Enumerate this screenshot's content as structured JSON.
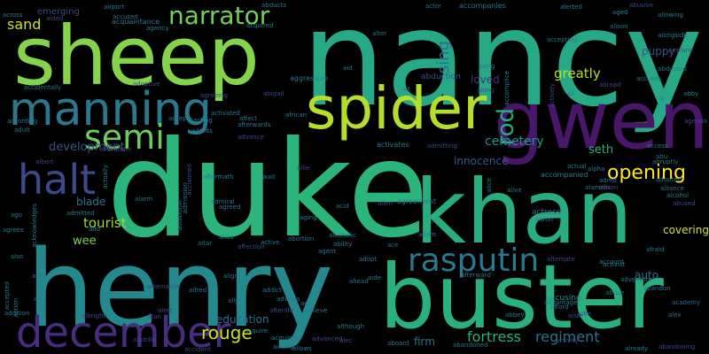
{
  "words": [
    {
      "id": "nancy",
      "text": "nancy",
      "color": "#27a987"
    },
    {
      "id": "duke",
      "text": "duke",
      "color": "#2cb47d"
    },
    {
      "id": "henry",
      "text": "henry",
      "color": "#23898e"
    },
    {
      "id": "sheep",
      "text": "sheep",
      "color": "#84d44b"
    },
    {
      "id": "khan",
      "text": "khan",
      "color": "#27ad81"
    },
    {
      "id": "buster",
      "text": "buster",
      "color": "#2ab07f"
    },
    {
      "id": "gwen",
      "text": "gwen",
      "color": "#481769"
    },
    {
      "id": "spider",
      "text": "spider",
      "color": "#b5de2b"
    },
    {
      "id": "manning",
      "text": "manning",
      "color": "#2a788e"
    },
    {
      "id": "december",
      "text": "december",
      "color": "#472d7b"
    },
    {
      "id": "rasputin",
      "text": "rasputin",
      "color": "#2a788e"
    },
    {
      "id": "halt",
      "text": "halt",
      "color": "#3e4989"
    },
    {
      "id": "semi",
      "text": "semi",
      "color": "#6ccd5a"
    },
    {
      "id": "narrator",
      "text": "narrator",
      "color": "#73d056"
    },
    {
      "id": "opening",
      "text": "opening",
      "color": "#fde725"
    },
    {
      "id": "rouge",
      "text": "rouge",
      "color": "#d0e11c"
    },
    {
      "id": "rod",
      "text": "rod",
      "color": "#27ad81"
    },
    {
      "id": "fortress",
      "text": "fortress",
      "color": "#2ab07f"
    },
    {
      "id": "regiment",
      "text": "regiment",
      "color": "#2c728e"
    },
    {
      "id": "sand",
      "text": "sand",
      "color": "#cde11d"
    },
    {
      "id": "greatly",
      "text": "greatly",
      "color": "#b5de2b"
    },
    {
      "id": "sing",
      "text": "sing",
      "color": "#31688e"
    },
    {
      "id": "development",
      "text": "development",
      "color": "#3b528b"
    },
    {
      "id": "cemetery",
      "text": "cemetery",
      "color": "#1f958b"
    },
    {
      "id": "innocence",
      "text": "innocence",
      "color": "#39568c"
    },
    {
      "id": "seth",
      "text": "seth",
      "color": "#2ab07f"
    },
    {
      "id": "tourist",
      "text": "tourist",
      "color": "#9fda3a"
    },
    {
      "id": "blade",
      "text": "blade",
      "color": "#2a778e"
    },
    {
      "id": "wee",
      "text": "wee",
      "color": "#7fd34e"
    },
    {
      "id": "education",
      "text": "education",
      "color": "#2d708e"
    },
    {
      "id": "firm",
      "text": "firm",
      "color": "#2c728e"
    },
    {
      "id": "covering",
      "text": "covering",
      "color": "#d8e219"
    },
    {
      "id": "auto",
      "text": "auto",
      "color": "#2a788e"
    },
    {
      "id": "puppy",
      "text": "puppy",
      "color": "#3b528b"
    },
    {
      "id": "loved",
      "text": "loved",
      "color": "#46327e"
    },
    {
      "id": "emerging",
      "text": "emerging",
      "color": "#3e4989"
    },
    {
      "id": "actress",
      "text": "actress",
      "color": "#31688e"
    },
    {
      "id": "accusing",
      "text": "accusing",
      "color": "#21918c"
    },
    {
      "id": "abduction",
      "text": "abduction",
      "color": "#3b528b"
    },
    {
      "id": "aggressive",
      "text": "aggressive",
      "color": "#2a788e"
    },
    {
      "id": "adoptive",
      "text": "adoptive",
      "color": "#3e4989"
    },
    {
      "id": "admitting",
      "text": "admitting",
      "color": "#3e4989"
    },
    {
      "id": "accompanied",
      "text": "accompanied",
      "color": "#2a788e"
    },
    {
      "id": "activates",
      "text": "activates",
      "color": "#2a788e"
    },
    {
      "id": "agreement",
      "text": "agreement",
      "color": "#2a788e"
    },
    {
      "id": "acquaintance",
      "text": "acquaintance",
      "color": "#2a788e"
    },
    {
      "id": "accepting",
      "text": "accepting",
      "color": "#2a788e"
    },
    {
      "id": "accompanies",
      "text": "accompanies",
      "color": "#2a788e"
    },
    {
      "id": "abandoning",
      "text": "abandoning",
      "color": "#3e4989"
    },
    {
      "id": "academy",
      "text": "academy",
      "color": "#31688e"
    },
    {
      "id": "abandon",
      "text": "abandon",
      "color": "#2a788e"
    },
    {
      "id": "adventure",
      "text": "adventure",
      "color": "#2a788e"
    },
    {
      "id": "airport",
      "text": "airport",
      "color": "#2a788e"
    },
    {
      "id": "abducts",
      "text": "abducts",
      "color": "#2a788e"
    },
    {
      "id": "actor",
      "text": "actor",
      "color": "#2a788e"
    },
    {
      "id": "alerted",
      "text": "alerted",
      "color": "#2a788e"
    },
    {
      "id": "abusive",
      "text": "abusive",
      "color": "#3e4989"
    },
    {
      "id": "across",
      "text": "across",
      "color": "#2a788e"
    },
    {
      "id": "accused",
      "text": "accused",
      "color": "#2a788e"
    },
    {
      "id": "agency",
      "text": "agency",
      "color": "#2a788e"
    },
    {
      "id": "acquired",
      "text": "acquired",
      "color": "#2a788e"
    },
    {
      "id": "aided",
      "text": "aided",
      "color": "#3e4989"
    },
    {
      "id": "alter",
      "text": "alter",
      "color": "#2a788e"
    },
    {
      "id": "aid",
      "text": "aid",
      "color": "#2a788e"
    },
    {
      "id": "aang",
      "text": "aang",
      "color": "#2a788e"
    },
    {
      "id": "ad",
      "text": "ad",
      "color": "#2a788e"
    },
    {
      "id": "along",
      "text": "along",
      "color": "#3e4989"
    },
    {
      "id": "accidentally",
      "text": "accidentally",
      "color": "#2a788e"
    },
    {
      "id": "abigail",
      "text": "abigail",
      "color": "#3e4989"
    },
    {
      "id": "agreeing",
      "text": "agreeing",
      "color": "#3e4989"
    },
    {
      "id": "accepts",
      "text": "accepts",
      "color": "#2a788e"
    },
    {
      "id": "acting",
      "text": "acting",
      "color": "#2a788e"
    },
    {
      "id": "activated",
      "text": "activated",
      "color": "#2a788e"
    },
    {
      "id": "affect",
      "text": "affect",
      "color": "#2a788e"
    },
    {
      "id": "afterwards",
      "text": "afterwards",
      "color": "#2a788e"
    },
    {
      "id": "admits",
      "text": "admits",
      "color": "#2a788e"
    },
    {
      "id": "advance",
      "text": "advance",
      "color": "#3e4989"
    },
    {
      "id": "african",
      "text": "african",
      "color": "#2a788e"
    },
    {
      "id": "according",
      "text": "according",
      "color": "#2a788e"
    },
    {
      "id": "adult",
      "text": "adult",
      "color": "#2a788e"
    },
    {
      "id": "alien",
      "text": "alien",
      "color": "#3e4989"
    },
    {
      "id": "abroad",
      "text": "abroad",
      "color": "#3e4989"
    },
    {
      "id": "accuses",
      "text": "accuses",
      "color": "#2a788e"
    },
    {
      "id": "abby",
      "text": "abby",
      "color": "#2a788e"
    },
    {
      "id": "access",
      "text": "access",
      "color": "#2a788e"
    },
    {
      "id": "abu",
      "text": "abu",
      "color": "#2a788e"
    },
    {
      "id": "abruptly",
      "text": "abruptly",
      "color": "#2a788e"
    },
    {
      "id": "adopted",
      "text": "adopted",
      "color": "#2a788e"
    },
    {
      "id": "alliance",
      "text": "alliance",
      "color": "#2a788e"
    },
    {
      "id": "alcohol",
      "text": "alcohol",
      "color": "#2a788e"
    },
    {
      "id": "abused",
      "text": "abused",
      "color": "#3e4989"
    },
    {
      "id": "actual",
      "text": "actual",
      "color": "#2a788e"
    },
    {
      "id": "alpha",
      "text": "alpha",
      "color": "#2a788e"
    },
    {
      "id": "admit",
      "text": "admit",
      "color": "#2a788e"
    },
    {
      "id": "aaron",
      "text": "aaron",
      "color": "#2a788e"
    },
    {
      "id": "afraid",
      "text": "afraid",
      "color": "#2a788e"
    },
    {
      "id": "activist",
      "text": "activist",
      "color": "#2a788e"
    },
    {
      "id": "account",
      "text": "account",
      "color": "#2a788e"
    },
    {
      "id": "abuse",
      "text": "abuse",
      "color": "#2a788e"
    },
    {
      "id": "advantage",
      "text": "advantage",
      "color": "#2a788e"
    },
    {
      "id": "afford",
      "text": "afford",
      "color": "#2a788e"
    },
    {
      "id": "abbey",
      "text": "abbey",
      "color": "#2a788e"
    },
    {
      "id": "aisle",
      "text": "aisle",
      "color": "#3e4989"
    },
    {
      "id": "alex",
      "text": "alex",
      "color": "#2a788e"
    },
    {
      "id": "activity",
      "text": "activity",
      "color": "#3e4989"
    },
    {
      "id": "already",
      "text": "already",
      "color": "#2a788e"
    },
    {
      "id": "abandoned",
      "text": "abandoned",
      "color": "#2a788e"
    },
    {
      "id": "aboard",
      "text": "aboard",
      "color": "#2a788e"
    },
    {
      "id": "afterward",
      "text": "afterward",
      "color": "#2a788e"
    },
    {
      "id": "ace",
      "text": "ace",
      "color": "#2a788e"
    },
    {
      "id": "adopt",
      "text": "adopt",
      "color": "#2a788e"
    },
    {
      "id": "adam",
      "text": "adam",
      "color": "#2a788e"
    },
    {
      "id": "ahead",
      "text": "ahead",
      "color": "#2a788e"
    },
    {
      "id": "aide",
      "text": "aide",
      "color": "#2a788e"
    },
    {
      "id": "although",
      "text": "although",
      "color": "#2a788e"
    },
    {
      "id": "act",
      "text": "act",
      "color": "#2a788e"
    },
    {
      "id": "achieve",
      "text": "achieve",
      "color": "#2a788e"
    },
    {
      "id": "afterlife",
      "text": "afterlife",
      "color": "#3e4989"
    },
    {
      "id": "advised",
      "text": "advised",
      "color": "#2a788e"
    },
    {
      "id": "acquires",
      "text": "acquires",
      "color": "#2a788e"
    },
    {
      "id": "adding",
      "text": "adding",
      "color": "#2a788e"
    },
    {
      "id": "allows",
      "text": "allows",
      "color": "#2a788e"
    },
    {
      "id": "acquire",
      "text": "acquire",
      "color": "#2a788e"
    },
    {
      "id": "advanced",
      "text": "advanced",
      "color": "#3e4989"
    },
    {
      "id": "alec",
      "text": "alec",
      "color": "#3e4989"
    },
    {
      "id": "alan",
      "text": "alan",
      "color": "#3e4989"
    },
    {
      "id": "albright",
      "text": "albright",
      "color": "#3e4989"
    },
    {
      "id": "alert",
      "text": "alert",
      "color": "#3e4989"
    },
    {
      "id": "accident",
      "text": "accident",
      "color": "#3e4989"
    },
    {
      "id": "alfred",
      "text": "alfred",
      "color": "#2a788e"
    },
    {
      "id": "ally",
      "text": "ally",
      "color": "#2a788e"
    },
    {
      "id": "altar",
      "text": "altar",
      "color": "#2a788e"
    },
    {
      "id": "alias",
      "text": "alias",
      "color": "#2a788e"
    },
    {
      "id": "align",
      "text": "align",
      "color": "#2a788e"
    },
    {
      "id": "affection",
      "text": "affection",
      "color": "#3e4989"
    },
    {
      "id": "active",
      "text": "active",
      "color": "#2a788e"
    },
    {
      "id": "abortion",
      "text": "abortion",
      "color": "#2a788e"
    },
    {
      "id": "alcoholic",
      "text": "alcoholic",
      "color": "#2a788e"
    },
    {
      "id": "ability",
      "text": "ability",
      "color": "#2a788e"
    },
    {
      "id": "agent",
      "text": "agent",
      "color": "#2a788e"
    },
    {
      "id": "addict",
      "text": "addict",
      "color": "#2a788e"
    },
    {
      "id": "advises",
      "text": "advises",
      "color": "#2a788e"
    },
    {
      "id": "aging",
      "text": "aging",
      "color": "#2a788e"
    },
    {
      "id": "acid",
      "text": "acid",
      "color": "#2a788e"
    },
    {
      "id": "agreed",
      "text": "agreed",
      "color": "#2a788e"
    },
    {
      "id": "admiral",
      "text": "admiral",
      "color": "#2a788e"
    },
    {
      "id": "aftermath",
      "text": "aftermath",
      "color": "#2a788e"
    },
    {
      "id": "wait",
      "text": "wait",
      "color": "#2a788e"
    },
    {
      "id": "allie",
      "text": "allie",
      "color": "#3e4989"
    },
    {
      "id": "additional",
      "text": "additional",
      "color": "#2a788e"
    },
    {
      "id": "admission",
      "text": "admission",
      "color": "#2a788e"
    },
    {
      "id": "admitted",
      "text": "admitted",
      "color": "#2a788e"
    },
    {
      "id": "add",
      "text": "add",
      "color": "#2a788e"
    },
    {
      "id": "alarm",
      "text": "alarm",
      "color": "#2a788e"
    },
    {
      "id": "alexander",
      "text": "alexander",
      "color": "#3e4989"
    },
    {
      "id": "albert",
      "text": "albert",
      "color": "#3e4989"
    },
    {
      "id": "ago",
      "text": "ago",
      "color": "#2a788e"
    },
    {
      "id": "agrees",
      "text": "agrees",
      "color": "#2a788e"
    },
    {
      "id": "also",
      "text": "also",
      "color": "#2a788e"
    },
    {
      "id": "alley",
      "text": "alley",
      "color": "#2a788e"
    },
    {
      "id": "ah",
      "text": "ah",
      "color": "#2a788e"
    },
    {
      "id": "addition",
      "text": "addition",
      "color": "#2a788e"
    },
    {
      "id": "accepted",
      "text": "accepted",
      "color": "#2a788e"
    },
    {
      "id": "action",
      "text": "action",
      "color": "#2a788e"
    },
    {
      "id": "acknowledges",
      "text": "acknowledges",
      "color": "#2a788e"
    },
    {
      "id": "actually",
      "text": "actually",
      "color": "#2a788e"
    },
    {
      "id": "acclaimed",
      "text": "acclaimed",
      "color": "#3e4989"
    },
    {
      "id": "ai",
      "text": "ai",
      "color": "#2a788e"
    },
    {
      "id": "aged",
      "text": "aged",
      "color": "#2a788e"
    },
    {
      "id": "allowing",
      "text": "allowing",
      "color": "#2a788e"
    },
    {
      "id": "alison",
      "text": "alison",
      "color": "#2a788e"
    },
    {
      "id": "alongside",
      "text": "alongside",
      "color": "#2a788e"
    },
    {
      "id": "airplane",
      "text": "airplane",
      "color": "#3e4989"
    },
    {
      "id": "abducted",
      "text": "abducted",
      "color": "#2a788e"
    },
    {
      "id": "alive",
      "text": "alive",
      "color": "#2a788e"
    },
    {
      "id": "alice",
      "text": "alice",
      "color": "#2a788e"
    },
    {
      "id": "accomplice",
      "text": "accomplice",
      "color": "#2a788e"
    },
    {
      "id": "alamein",
      "text": "alamein",
      "color": "#2a788e"
    },
    {
      "id": "allison",
      "text": "allison",
      "color": "#3e4989"
    },
    {
      "id": "agenda",
      "text": "agenda",
      "color": "#3e4989"
    },
    {
      "id": "actively",
      "text": "actively",
      "color": "#3e4989"
    },
    {
      "id": "ail",
      "text": "ail",
      "color": "#2a788e"
    },
    {
      "id": "alternate",
      "text": "alternate",
      "color": "#3e4989"
    },
    {
      "id": "alfie",
      "text": "alfie",
      "color": "#3e4989"
    },
    {
      "id": "aladdin",
      "text": "aladdin",
      "color": "#3e4989"
    },
    {
      "id": "alternative",
      "text": "alternative",
      "color": "#3e4989"
    }
  ]
}
